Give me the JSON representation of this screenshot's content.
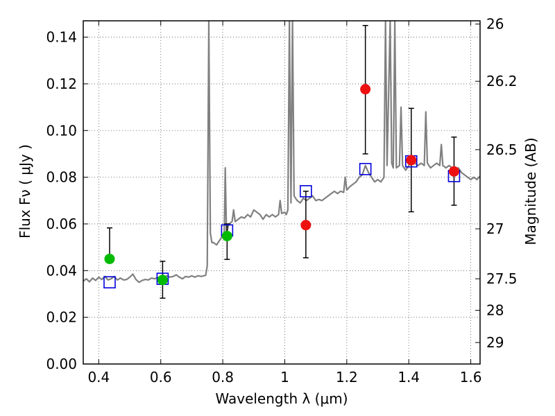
{
  "chart_data": {
    "type": "scatter",
    "title": "",
    "xlabel": "Wavelength  λ (μm)",
    "ylabel": "Flux  Fν  ( μJy )",
    "y2label": "Magnitude (AB)",
    "xlim": [
      0.35,
      1.63
    ],
    "ylim": [
      0.0,
      0.147
    ],
    "grid": true,
    "x_ticks": [
      0.4,
      0.6,
      0.8,
      1.0,
      1.2,
      1.4,
      1.6
    ],
    "x_tick_labels": [
      "0.4",
      "0.6",
      "0.8",
      "1",
      "1.2",
      "1.4",
      "1.6"
    ],
    "y_ticks": [
      0.0,
      0.02,
      0.04,
      0.06,
      0.08,
      0.1,
      0.12,
      0.14
    ],
    "y_tick_labels": [
      "0.00",
      "0.02",
      "0.04",
      "0.06",
      "0.08",
      "0.10",
      "0.12",
      "0.14"
    ],
    "y2_ticks": [
      {
        "label": "26",
        "flux": 0.1456
      },
      {
        "label": "26.2",
        "flux": 0.1211
      },
      {
        "label": "26.5",
        "flux": 0.0918
      },
      {
        "label": "27",
        "flux": 0.0579
      },
      {
        "label": "27.5",
        "flux": 0.0365
      },
      {
        "label": "28",
        "flux": 0.023
      },
      {
        "label": "29",
        "flux": 0.0092
      }
    ],
    "colors": {
      "model": "#808080",
      "green": "#00bb00",
      "red": "#ee1111",
      "square": "#0000dd",
      "errorbar": "#000000",
      "grid": "#555555"
    },
    "model_spectrum": [
      [
        0.35,
        0.0355
      ],
      [
        0.36,
        0.0365
      ],
      [
        0.37,
        0.0352
      ],
      [
        0.38,
        0.0368
      ],
      [
        0.39,
        0.0358
      ],
      [
        0.4,
        0.0372
      ],
      [
        0.41,
        0.0362
      ],
      [
        0.42,
        0.0375
      ],
      [
        0.43,
        0.036
      ],
      [
        0.44,
        0.0365
      ],
      [
        0.45,
        0.0375
      ],
      [
        0.46,
        0.036
      ],
      [
        0.47,
        0.0368
      ],
      [
        0.48,
        0.036
      ],
      [
        0.49,
        0.0362
      ],
      [
        0.5,
        0.0372
      ],
      [
        0.51,
        0.0385
      ],
      [
        0.52,
        0.0362
      ],
      [
        0.53,
        0.035
      ],
      [
        0.54,
        0.0358
      ],
      [
        0.55,
        0.0362
      ],
      [
        0.56,
        0.036
      ],
      [
        0.57,
        0.0368
      ],
      [
        0.58,
        0.0365
      ],
      [
        0.59,
        0.037
      ],
      [
        0.6,
        0.0372
      ],
      [
        0.61,
        0.0368
      ],
      [
        0.62,
        0.0378
      ],
      [
        0.63,
        0.0372
      ],
      [
        0.64,
        0.0375
      ],
      [
        0.65,
        0.0382
      ],
      [
        0.66,
        0.0372
      ],
      [
        0.67,
        0.0365
      ],
      [
        0.68,
        0.0375
      ],
      [
        0.69,
        0.0372
      ],
      [
        0.7,
        0.0378
      ],
      [
        0.71,
        0.0372
      ],
      [
        0.72,
        0.0378
      ],
      [
        0.73,
        0.0375
      ],
      [
        0.745,
        0.038
      ],
      [
        0.75,
        0.042
      ],
      [
        0.755,
        0.147
      ],
      [
        0.76,
        0.056
      ],
      [
        0.765,
        0.052
      ],
      [
        0.77,
        0.052
      ],
      [
        0.78,
        0.051
      ],
      [
        0.79,
        0.053
      ],
      [
        0.8,
        0.055
      ],
      [
        0.805,
        0.056
      ],
      [
        0.808,
        0.084
      ],
      [
        0.812,
        0.056
      ],
      [
        0.82,
        0.06
      ],
      [
        0.83,
        0.061
      ],
      [
        0.835,
        0.066
      ],
      [
        0.84,
        0.061
      ],
      [
        0.85,
        0.062
      ],
      [
        0.86,
        0.063
      ],
      [
        0.87,
        0.0625
      ],
      [
        0.88,
        0.064
      ],
      [
        0.89,
        0.063
      ],
      [
        0.9,
        0.066
      ],
      [
        0.91,
        0.065
      ],
      [
        0.92,
        0.064
      ],
      [
        0.93,
        0.062
      ],
      [
        0.94,
        0.064
      ],
      [
        0.95,
        0.063
      ],
      [
        0.96,
        0.064
      ],
      [
        0.97,
        0.063
      ],
      [
        0.98,
        0.064
      ],
      [
        0.985,
        0.07
      ],
      [
        0.99,
        0.0645
      ],
      [
        1.0,
        0.065
      ],
      [
        1.005,
        0.064
      ],
      [
        1.01,
        0.066
      ],
      [
        1.015,
        0.147
      ],
      [
        1.02,
        0.069
      ],
      [
        1.025,
        0.147
      ],
      [
        1.03,
        0.072
      ],
      [
        1.04,
        0.07
      ],
      [
        1.05,
        0.069
      ],
      [
        1.06,
        0.071
      ],
      [
        1.07,
        0.07
      ],
      [
        1.08,
        0.071
      ],
      [
        1.09,
        0.072
      ],
      [
        1.1,
        0.07
      ],
      [
        1.11,
        0.0705
      ],
      [
        1.12,
        0.07
      ],
      [
        1.13,
        0.071
      ],
      [
        1.14,
        0.072
      ],
      [
        1.15,
        0.073
      ],
      [
        1.16,
        0.074
      ],
      [
        1.17,
        0.073
      ],
      [
        1.18,
        0.074
      ],
      [
        1.19,
        0.0735
      ],
      [
        1.195,
        0.08
      ],
      [
        1.2,
        0.0745
      ],
      [
        1.21,
        0.076
      ],
      [
        1.22,
        0.077
      ],
      [
        1.23,
        0.078
      ],
      [
        1.24,
        0.08
      ],
      [
        1.25,
        0.081
      ],
      [
        1.255,
        0.083
      ],
      [
        1.26,
        0.085
      ],
      [
        1.27,
        0.082
      ],
      [
        1.28,
        0.08
      ],
      [
        1.29,
        0.078
      ],
      [
        1.3,
        0.079
      ],
      [
        1.31,
        0.078
      ],
      [
        1.32,
        0.08
      ],
      [
        1.325,
        0.147
      ],
      [
        1.33,
        0.085
      ],
      [
        1.34,
        0.147
      ],
      [
        1.345,
        0.086
      ],
      [
        1.35,
        0.084
      ],
      [
        1.355,
        0.147
      ],
      [
        1.36,
        0.084
      ],
      [
        1.37,
        0.085
      ],
      [
        1.375,
        0.11
      ],
      [
        1.38,
        0.085
      ],
      [
        1.39,
        0.083
      ],
      [
        1.4,
        0.085
      ],
      [
        1.41,
        0.087
      ],
      [
        1.42,
        0.086
      ],
      [
        1.43,
        0.085
      ],
      [
        1.44,
        0.086
      ],
      [
        1.45,
        0.085
      ],
      [
        1.455,
        0.108
      ],
      [
        1.46,
        0.086
      ],
      [
        1.47,
        0.084
      ],
      [
        1.48,
        0.085
      ],
      [
        1.49,
        0.086
      ],
      [
        1.5,
        0.085
      ],
      [
        1.505,
        0.094
      ],
      [
        1.51,
        0.085
      ],
      [
        1.52,
        0.084
      ],
      [
        1.53,
        0.085
      ],
      [
        1.54,
        0.084
      ],
      [
        1.55,
        0.083
      ],
      [
        1.56,
        0.084
      ],
      [
        1.57,
        0.082
      ],
      [
        1.58,
        0.081
      ],
      [
        1.59,
        0.08
      ],
      [
        1.6,
        0.079
      ],
      [
        1.61,
        0.08
      ],
      [
        1.62,
        0.079
      ],
      [
        1.63,
        0.0805
      ]
    ],
    "observed_green": [
      {
        "x": 0.435,
        "y": 0.045,
        "yerr_low": 0.045,
        "yerr_high": 0.0583
      },
      {
        "x": 0.606,
        "y": 0.036,
        "yerr_low": 0.0282,
        "yerr_high": 0.044
      },
      {
        "x": 0.814,
        "y": 0.0548,
        "yerr_low": 0.0448,
        "yerr_high": 0.06
      }
    ],
    "observed_red": [
      {
        "x": 1.068,
        "y": 0.0595,
        "yerr_low": 0.0455,
        "yerr_high": 0.074
      },
      {
        "x": 1.26,
        "y": 0.1177,
        "yerr_low": 0.09,
        "yerr_high": 0.145
      },
      {
        "x": 1.408,
        "y": 0.0873,
        "yerr_low": 0.0652,
        "yerr_high": 0.1095
      },
      {
        "x": 1.546,
        "y": 0.0825,
        "yerr_low": 0.068,
        "yerr_high": 0.0972
      }
    ],
    "model_bands": [
      {
        "x": 0.435,
        "y": 0.035
      },
      {
        "x": 0.606,
        "y": 0.0365
      },
      {
        "x": 0.814,
        "y": 0.0572
      },
      {
        "x": 1.068,
        "y": 0.074
      },
      {
        "x": 1.26,
        "y": 0.0835
      },
      {
        "x": 1.408,
        "y": 0.0868
      },
      {
        "x": 1.546,
        "y": 0.0805
      }
    ]
  }
}
